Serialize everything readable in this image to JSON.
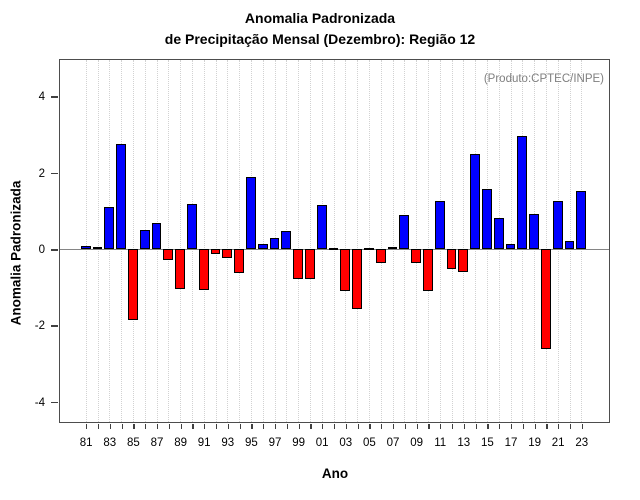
{
  "title": {
    "line1": "Anomalia Padronizada",
    "line2": "de Precipitação Mensal (Dezembro): Região 12"
  },
  "annotation": "(Produto:CPTEC/INPE)",
  "chart_data": {
    "type": "bar",
    "title": "Anomalia Padronizada de Precipitação Mensal (Dezembro): Região 12",
    "xlabel": "Ano",
    "ylabel": "Anomalia Padronizada",
    "ylim": [
      -4.52,
      4.96
    ],
    "yticks": [
      4,
      2,
      0,
      -2,
      -4
    ],
    "grid": "vertical-dotted-per-year",
    "legend": "none",
    "categories": [
      "81",
      "82",
      "83",
      "84",
      "85",
      "86",
      "87",
      "88",
      "89",
      "90",
      "91",
      "92",
      "93",
      "94",
      "95",
      "96",
      "97",
      "98",
      "99",
      "00",
      "01",
      "02",
      "03",
      "04",
      "05",
      "06",
      "07",
      "08",
      "09",
      "10",
      "11",
      "12",
      "13",
      "14",
      "15",
      "16",
      "17",
      "18",
      "19",
      "20",
      "21",
      "22",
      "23"
    ],
    "xtick_labels": [
      "81",
      "83",
      "85",
      "87",
      "89",
      "91",
      "93",
      "95",
      "97",
      "99",
      "01",
      "03",
      "05",
      "07",
      "09",
      "11",
      "13",
      "15",
      "17",
      "19",
      "21",
      "23"
    ],
    "values": [
      0.08,
      0.07,
      1.12,
      2.76,
      -1.86,
      0.5,
      0.7,
      -0.29,
      -1.05,
      1.2,
      -1.07,
      -0.13,
      -0.22,
      -0.62,
      1.9,
      0.13,
      0.31,
      0.48,
      -0.77,
      -0.77,
      1.15,
      0.03,
      -1.09,
      -1.55,
      0.04,
      -0.35,
      0.07,
      0.89,
      -0.37,
      -1.1,
      1.27,
      -0.52,
      -0.58,
      2.5,
      1.59,
      0.83,
      0.13,
      2.98,
      0.93,
      -2.6,
      1.26,
      0.21,
      1.54
    ],
    "colors": {
      "positive_bar": "#0000ff",
      "negative_bar": "#ff0000",
      "bar_border": "#000000",
      "zero_line": "#858585",
      "grid_line": "#d2d2d2",
      "frame": "#4d4d4d",
      "annotation_text": "#7f7f7f"
    }
  }
}
